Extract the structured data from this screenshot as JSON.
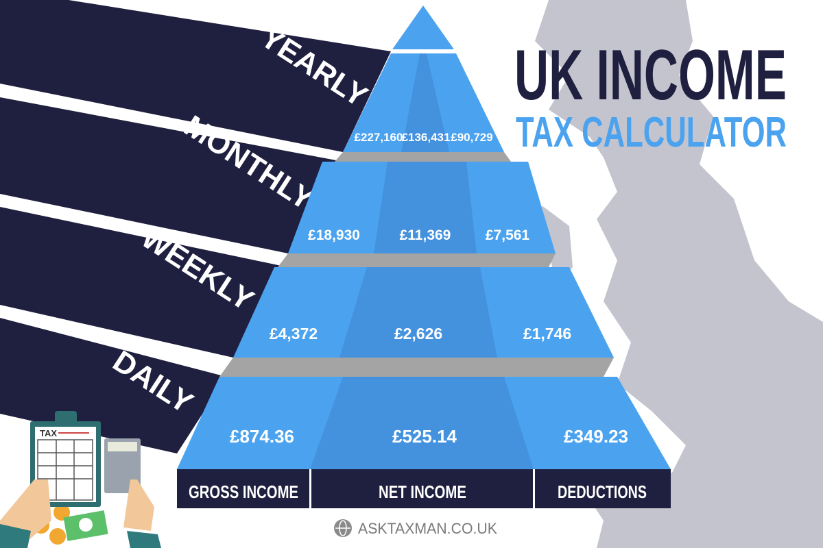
{
  "title": {
    "line1": "UK INCOME",
    "line2": "TAX CALCULATOR"
  },
  "periods": [
    {
      "label": "YEARLY",
      "gross": "£227,160",
      "net": "£136,431",
      "deductions": "£90,729"
    },
    {
      "label": "MONTHLY",
      "gross": "£18,930",
      "net": "£11,369",
      "deductions": "£7,561"
    },
    {
      "label": "WEEKLY",
      "gross": "£4,372",
      "net": "£2,626",
      "deductions": "£1,746"
    },
    {
      "label": "DAILY",
      "gross": "£874.36",
      "net": "£525.14",
      "deductions": "£349.23"
    }
  ],
  "columns": [
    "GROSS INCOME",
    "NET INCOME",
    "DEDUCTIONS"
  ],
  "illustration": {
    "clipboard_label": "TAX"
  },
  "footer": {
    "site": "ASKTAXMAN.CO.UK",
    "icon": "globe-icon"
  },
  "colors": {
    "navy": "#1f1f3f",
    "blue": "#4ba3ef",
    "blue_dark": "#4492de",
    "gray": "#c3c3cd"
  }
}
